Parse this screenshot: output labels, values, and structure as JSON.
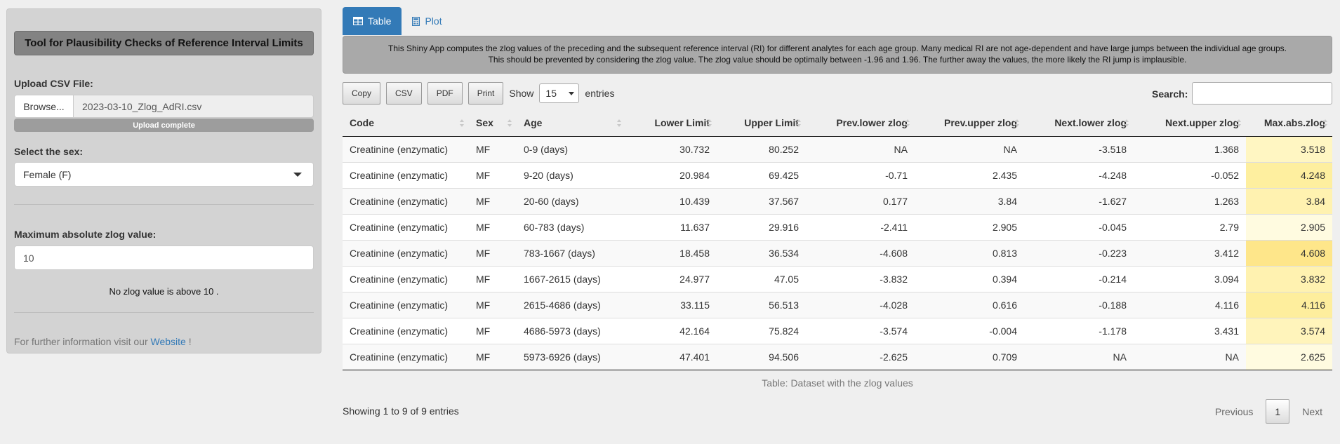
{
  "sidebar": {
    "title": "Tool for Plausibility Checks of Reference Interval Limits",
    "upload_label": "Upload CSV File:",
    "browse_label": "Browse...",
    "file_name": "2023-03-10_Zlog_AdRI.csv",
    "upload_status": "Upload complete",
    "upload_progress": 1.0,
    "sex_label": "Select the sex:",
    "sex_selected": "Female (F)",
    "zlog_label": "Maximum absolute zlog value:",
    "zlog_value": "10",
    "message": "No zlog value is above 10 .",
    "info_prefix": "For further information visit our",
    "info_link": "Website",
    "info_suffix": "!"
  },
  "tabs": [
    {
      "label": "Table",
      "icon": "table-icon",
      "active": true
    },
    {
      "label": "Plot",
      "icon": "calculator-icon",
      "active": false
    }
  ],
  "description": {
    "line1": "This Shiny App computes the zlog values of the preceding and the subsequent reference interval (RI) for different analytes for each age group. Many medical RI are not age-dependent and have large jumps between the individual age groups.",
    "line2": "This should be prevented by considering the zlog value. The zlog value should be optimally between -1.96 and 1.96. The further away the values, the more likely the RI jump is implausible."
  },
  "toolbar": {
    "buttons": [
      "Copy",
      "CSV",
      "PDF",
      "Print"
    ],
    "show_label": "Show",
    "page_length": "15",
    "entries_label": "entries",
    "search_label": "Search:"
  },
  "table": {
    "columns": [
      "Code",
      "Sex",
      "Age",
      "Lower Limit",
      "Upper Limit",
      "Prev.lower zlog",
      "Prev.upper zlog",
      "Next.lower zlog",
      "Next.upper zlog",
      "Max.abs.zlog"
    ],
    "rows": [
      [
        "Creatinine (enzymatic)",
        "MF",
        "0-9 (days)",
        "30.732",
        "80.252",
        "NA",
        "NA",
        "-3.518",
        "1.368",
        "3.518"
      ],
      [
        "Creatinine (enzymatic)",
        "MF",
        "9-20 (days)",
        "20.984",
        "69.425",
        "-0.71",
        "2.435",
        "-4.248",
        "-0.052",
        "4.248"
      ],
      [
        "Creatinine (enzymatic)",
        "MF",
        "20-60 (days)",
        "10.439",
        "37.567",
        "0.177",
        "3.84",
        "-1.627",
        "1.263",
        "3.84"
      ],
      [
        "Creatinine (enzymatic)",
        "MF",
        "60-783 (days)",
        "11.637",
        "29.916",
        "-2.411",
        "2.905",
        "-0.045",
        "2.79",
        "2.905"
      ],
      [
        "Creatinine (enzymatic)",
        "MF",
        "783-1667 (days)",
        "18.458",
        "36.534",
        "-4.608",
        "0.813",
        "-0.223",
        "3.412",
        "4.608"
      ],
      [
        "Creatinine (enzymatic)",
        "MF",
        "1667-2615 (days)",
        "24.977",
        "47.05",
        "-3.832",
        "0.394",
        "-0.214",
        "3.094",
        "3.832"
      ],
      [
        "Creatinine (enzymatic)",
        "MF",
        "2615-4686 (days)",
        "33.115",
        "56.513",
        "-4.028",
        "0.616",
        "-0.188",
        "4.116",
        "4.116"
      ],
      [
        "Creatinine (enzymatic)",
        "MF",
        "4686-5973 (days)",
        "42.164",
        "75.824",
        "-3.574",
        "-0.004",
        "-1.178",
        "3.431",
        "3.574"
      ],
      [
        "Creatinine (enzymatic)",
        "MF",
        "5973-6926 (days)",
        "47.401",
        "94.506",
        "-2.625",
        "0.709",
        "NA",
        "NA",
        "2.625"
      ]
    ],
    "max_col_colors": [
      "#fff6c2",
      "#feef9f",
      "#fff2b0",
      "#fffbe0",
      "#fee68a",
      "#fff2b0",
      "#feee9d",
      "#fff4bb",
      "#fffbe0"
    ],
    "caption": "Table: Dataset with the zlog values"
  },
  "footer": {
    "info": "Showing 1 to 9 of 9 entries",
    "previous": "Previous",
    "page": "1",
    "next": "Next"
  }
}
